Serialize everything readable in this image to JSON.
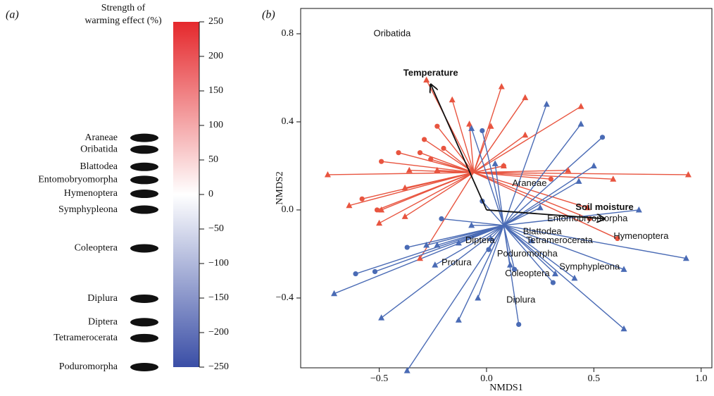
{
  "chart_data": [
    {
      "type": "colorbar",
      "panel_label": "(a)",
      "title_lines": [
        "Strength of",
        "warming effect (%)"
      ],
      "ylim": [
        -250,
        250
      ],
      "yticks": [
        250,
        200,
        150,
        100,
        50,
        0,
        {
          "value": -50,
          "label": "−50"
        },
        {
          "value": -100,
          "label": "−100"
        },
        {
          "value": -150,
          "label": "−150"
        },
        {
          "value": -200,
          "label": "−200"
        },
        {
          "value": -250,
          "label": "−250"
        }
      ],
      "colors": [
        "#3a4ea6",
        "#ffffff",
        "#e5282c"
      ],
      "categories": [
        "Araneae",
        "Oribatida",
        "Blattodea",
        "Entomobryomorpha",
        "Hymenoptera",
        "Symphypleona",
        "Coleoptera",
        "Diplura",
        "Diptera",
        "Tetramerocerata",
        "Poduromorpha"
      ],
      "values": [
        82,
        65,
        40,
        21,
        1,
        -22,
        -78,
        -151,
        -185,
        -208,
        -250
      ]
    },
    {
      "type": "scatter",
      "panel_label": "(b)",
      "xlabel": "NMDS1",
      "ylabel": "NMDS2",
      "xlim": [
        -0.866,
        1.05
      ],
      "ylim": [
        -0.717,
        0.915
      ],
      "xticks": [
        {
          "value": -0.5,
          "label": "−0.5"
        },
        {
          "value": 0,
          "label": "0.0"
        },
        0.5,
        {
          "value": 1,
          "label": "1.0"
        }
      ],
      "yticks": [
        {
          "value": -0.4,
          "label": "−0.4"
        },
        {
          "value": 0,
          "label": "0.0"
        },
        0.4,
        0.8
      ],
      "series": [
        {
          "color": "#e8543f",
          "marker": "triangle",
          "centroid": [
            -0.06,
            0.17
          ],
          "x": [
            -0.28,
            -0.16,
            0.07,
            0.18,
            0.44,
            -0.08,
            0.02,
            0.18,
            0.08,
            -0.74,
            0.94,
            0.38,
            0.59,
            -0.64,
            -0.49,
            -0.5,
            -0.38,
            -0.36,
            -0.23,
            -0.38,
            -0.31,
            0.47
          ],
          "y": [
            0.59,
            0.5,
            0.56,
            0.51,
            0.47,
            0.39,
            0.38,
            0.34,
            0.2,
            0.16,
            0.16,
            0.18,
            0.14,
            0.02,
            0.0,
            -0.06,
            -0.03,
            0.18,
            0.18,
            0.1,
            -0.22,
            0.01
          ]
        },
        {
          "color": "#e8543f",
          "marker": "circle",
          "centroid": [
            -0.06,
            0.17
          ],
          "x": [
            -0.29,
            -0.41,
            -0.31,
            -0.26,
            -0.2,
            -0.23,
            -0.49,
            -0.58,
            -0.51,
            0.08,
            0.3,
            0.48,
            0.61
          ],
          "y": [
            0.32,
            0.26,
            0.26,
            0.23,
            0.28,
            0.38,
            0.22,
            0.05,
            0.0,
            0.2,
            0.14,
            -0.04,
            -0.13
          ]
        },
        {
          "color": "#4a6bb5",
          "marker": "triangle",
          "centroid": [
            0.08,
            -0.07
          ],
          "x": [
            0.28,
            0.44,
            -0.07,
            0.04,
            0.5,
            0.43,
            0.71,
            0.25,
            0.93,
            0.64,
            0.41,
            -0.71,
            -0.49,
            -0.37,
            -0.13,
            0.64,
            -0.07,
            -0.28,
            -0.23,
            -0.13,
            0.02,
            0.21,
            -0.24,
            0.11,
            0.32,
            -0.04
          ],
          "y": [
            0.48,
            0.39,
            0.37,
            0.21,
            0.2,
            0.13,
            0.0,
            0.01,
            -0.22,
            -0.27,
            -0.31,
            -0.38,
            -0.49,
            -0.73,
            -0.5,
            -0.54,
            -0.07,
            -0.16,
            -0.16,
            -0.15,
            -0.13,
            -0.14,
            -0.25,
            -0.25,
            -0.29,
            -0.4
          ]
        },
        {
          "color": "#4a6bb5",
          "marker": "circle",
          "centroid": [
            0.08,
            -0.07
          ],
          "x": [
            -0.02,
            0.54,
            -0.21,
            -0.37,
            -0.61,
            -0.52,
            0.15,
            0.13,
            0.31,
            -0.02,
            0.01
          ],
          "y": [
            0.36,
            0.33,
            -0.04,
            -0.17,
            -0.29,
            -0.28,
            -0.52,
            -0.27,
            -0.33,
            0.04,
            -0.18
          ]
        }
      ],
      "vectors": [
        {
          "label": "Temperature",
          "x": -0.26,
          "y": 0.57
        },
        {
          "label": "Soil moisture",
          "x": 0.55,
          "y": -0.04
        }
      ],
      "labels": [
        {
          "text": "Oribatida",
          "x": -0.44,
          "y": 0.8
        },
        {
          "text": "Araneae",
          "x": 0.2,
          "y": 0.12
        },
        {
          "text": "Entomobryomorpha",
          "x": 0.47,
          "y": -0.04
        },
        {
          "text": "Hymenoptera",
          "x": 0.72,
          "y": -0.12
        },
        {
          "text": "Blattodea",
          "x": 0.26,
          "y": -0.1
        },
        {
          "text": "Diptera",
          "x": -0.03,
          "y": -0.14
        },
        {
          "text": "Tetramerocerata",
          "x": 0.34,
          "y": -0.14
        },
        {
          "text": "Poduromorpha",
          "x": 0.19,
          "y": -0.2
        },
        {
          "text": "Symphypleona",
          "x": 0.48,
          "y": -0.26
        },
        {
          "text": "Protura",
          "x": -0.14,
          "y": -0.24
        },
        {
          "text": "Coleoptera",
          "x": 0.19,
          "y": -0.29
        },
        {
          "text": "Diplura",
          "x": 0.16,
          "y": -0.41
        }
      ]
    }
  ]
}
